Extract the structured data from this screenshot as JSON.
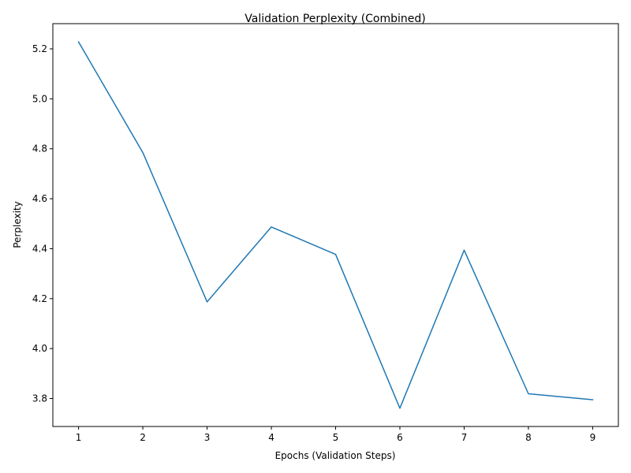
{
  "chart_data": {
    "type": "line",
    "title": "Validation Perplexity (Combined)",
    "xlabel": "Epochs (Validation Steps)",
    "ylabel": "Perplexity",
    "x": [
      1,
      2,
      3,
      4,
      5,
      6,
      7,
      8,
      9
    ],
    "series": [
      {
        "values": [
          5.228,
          4.785,
          4.187,
          4.487,
          4.377,
          3.761,
          4.394,
          3.819,
          3.795
        ],
        "color": "#1f77b4"
      }
    ],
    "xticks": [
      "1",
      "2",
      "3",
      "4",
      "5",
      "6",
      "7",
      "8",
      "9"
    ],
    "yticks": [
      "3.8",
      "4.0",
      "4.2",
      "4.4",
      "4.6",
      "4.8",
      "5.0",
      "5.2"
    ],
    "xlim": [
      0.6,
      9.4
    ],
    "ylim": [
      3.688,
      5.301
    ],
    "grid": false,
    "legend": false
  }
}
